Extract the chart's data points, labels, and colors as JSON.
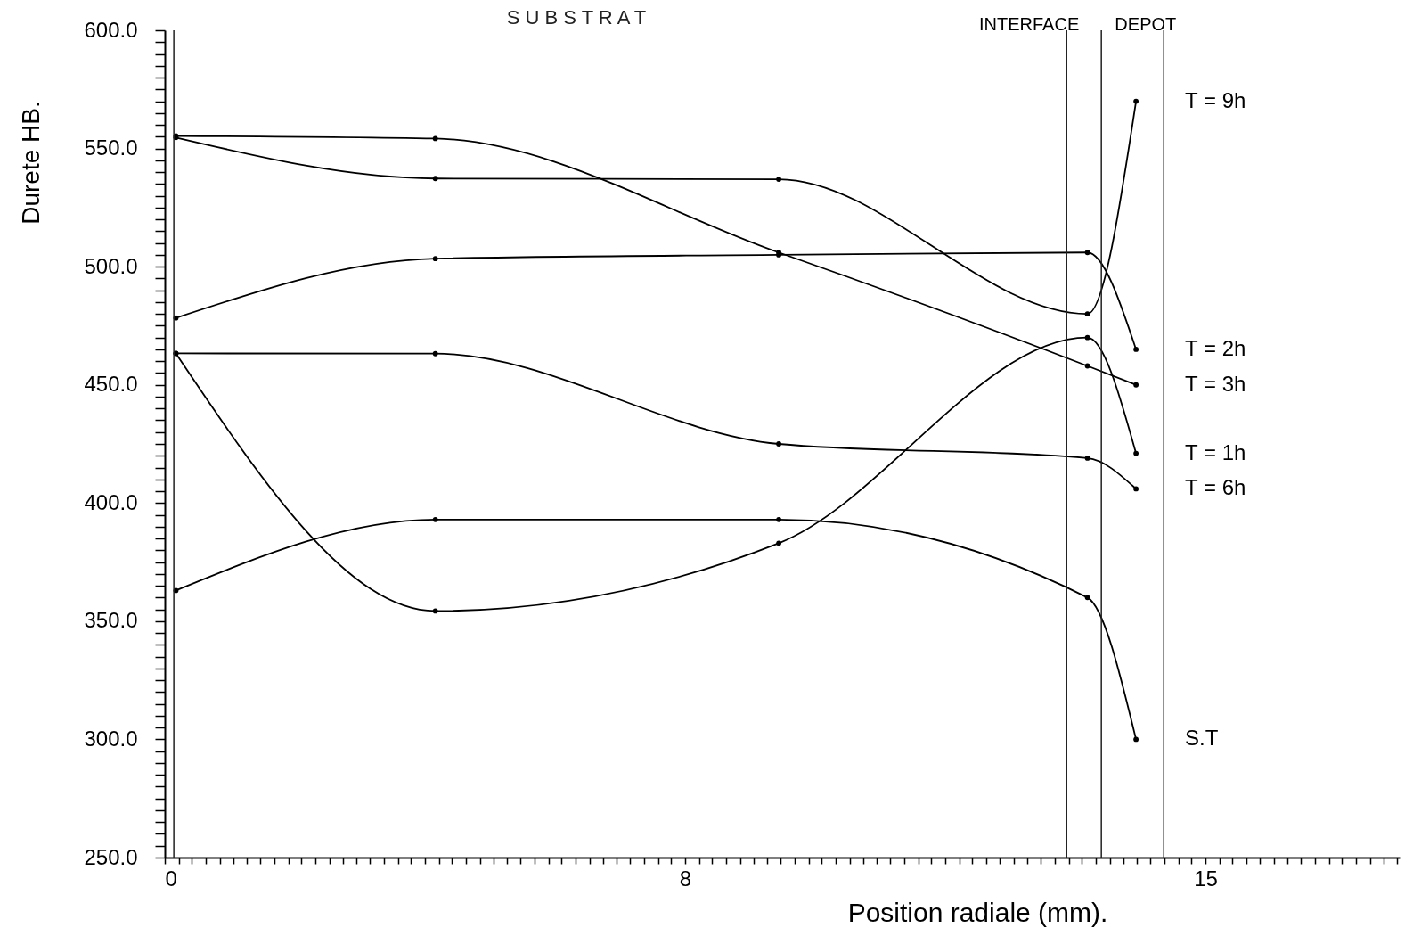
{
  "chart_data": {
    "type": "line",
    "xlabel": "Position radiale (mm).",
    "ylabel": "Durete HB.",
    "x": [
      0.16,
      3.9,
      8.85,
      13.3,
      14.0
    ],
    "series": [
      {
        "name": "T = 9h",
        "color": "#000000",
        "values": [
          554.6,
          537.3,
          537,
          480,
          570
        ]
      },
      {
        "name": "T = 2h",
        "color": "#000000",
        "values": [
          478.3,
          503.4,
          505,
          506,
          465
        ]
      },
      {
        "name": "T = 3h",
        "color": "#000000",
        "values": [
          555.3,
          554.2,
          506,
          458,
          450
        ]
      },
      {
        "name": "T = 1h",
        "color": "#000000",
        "values": [
          463.3,
          354.3,
          383,
          470,
          421
        ]
      },
      {
        "name": "T = 6h",
        "color": "#000000",
        "values": [
          463.3,
          463.2,
          425,
          419,
          406
        ]
      },
      {
        "name": "S.T",
        "color": "#000000",
        "values": [
          363,
          393,
          393,
          360,
          300
        ]
      }
    ],
    "xlim": [
      0,
      17.8
    ],
    "ylim": [
      250,
      600
    ],
    "xticks": [
      0,
      {
        "value": 0.2,
        "label": null
      },
      {
        "value": 0.39,
        "label": null
      },
      {
        "value": 0.59,
        "label": null
      },
      {
        "value": 0.79,
        "label": null
      },
      {
        "value": 0.99,
        "label": null
      },
      {
        "value": 1.18,
        "label": null
      },
      {
        "value": 1.38,
        "label": null
      },
      {
        "value": 1.58,
        "label": null
      },
      {
        "value": 1.78,
        "label": null
      },
      {
        "value": 1.97,
        "label": null
      },
      {
        "value": 2.17,
        "label": null
      },
      {
        "value": 2.37,
        "label": null
      },
      {
        "value": 2.57,
        "label": null
      },
      {
        "value": 2.76,
        "label": null
      },
      {
        "value": 2.96,
        "label": null
      },
      {
        "value": 3.16,
        "label": null
      },
      {
        "value": 3.36,
        "label": null
      },
      {
        "value": 3.55,
        "label": null
      },
      {
        "value": 3.75,
        "label": null
      },
      {
        "value": 3.95,
        "label": null
      },
      {
        "value": 4.14,
        "label": null
      },
      {
        "value": 4.34,
        "label": null
      },
      {
        "value": 4.54,
        "label": null
      },
      {
        "value": 4.74,
        "label": null
      },
      {
        "value": 4.93,
        "label": null
      },
      {
        "value": 5.13,
        "label": null
      },
      {
        "value": 5.33,
        "label": null
      },
      {
        "value": 5.53,
        "label": null
      },
      {
        "value": 5.72,
        "label": null
      },
      {
        "value": 5.92,
        "label": null
      },
      {
        "value": 6.12,
        "label": null
      },
      {
        "value": 6.32,
        "label": null
      },
      {
        "value": 6.51,
        "label": null
      },
      {
        "value": 6.71,
        "label": null
      },
      {
        "value": 6.91,
        "label": null
      },
      {
        "value": 7.11,
        "label": null
      },
      {
        "value": 7.3,
        "label": null
      },
      {
        "value": 7.5,
        "label": "8"
      },
      {
        "value": 7.7,
        "label": null
      },
      {
        "value": 7.89,
        "label": null
      },
      {
        "value": 8.09,
        "label": null
      },
      {
        "value": 8.29,
        "label": null
      },
      {
        "value": 8.49,
        "label": null
      },
      {
        "value": 8.68,
        "label": null
      },
      {
        "value": 8.88,
        "label": null
      },
      {
        "value": 9.08,
        "label": null
      },
      {
        "value": 9.28,
        "label": null
      },
      {
        "value": 9.47,
        "label": null
      },
      {
        "value": 9.67,
        "label": null
      },
      {
        "value": 9.87,
        "label": null
      },
      {
        "value": 10.07,
        "label": null
      },
      {
        "value": 10.26,
        "label": null
      },
      {
        "value": 10.46,
        "label": null
      },
      {
        "value": 10.66,
        "label": null
      },
      {
        "value": 10.86,
        "label": null
      },
      {
        "value": 11.05,
        "label": null
      },
      {
        "value": 11.25,
        "label": null
      },
      {
        "value": 11.45,
        "label": null
      },
      {
        "value": 11.64,
        "label": null
      },
      {
        "value": 11.84,
        "label": null
      },
      {
        "value": 12.04,
        "label": null
      },
      {
        "value": 12.24,
        "label": null
      },
      {
        "value": 12.43,
        "label": null
      },
      {
        "value": 12.63,
        "label": null
      },
      {
        "value": 12.83,
        "label": null
      },
      {
        "value": 13.03,
        "label": null
      },
      {
        "value": 13.22,
        "label": null
      },
      {
        "value": 13.42,
        "label": null
      },
      {
        "value": 13.62,
        "label": null
      },
      {
        "value": 13.82,
        "label": null
      },
      {
        "value": 14.01,
        "label": null
      },
      {
        "value": 14.21,
        "label": null
      },
      {
        "value": 14.41,
        "label": null
      },
      {
        "value": 14.61,
        "label": null
      },
      {
        "value": 14.8,
        "label": null
      },
      15,
      {
        "value": 15.2,
        "label": null
      },
      {
        "value": 15.39,
        "label": null
      },
      {
        "value": 15.59,
        "label": null
      },
      {
        "value": 15.79,
        "label": null
      },
      {
        "value": 15.99,
        "label": null
      },
      {
        "value": 16.18,
        "label": null
      },
      {
        "value": 16.38,
        "label": null
      },
      {
        "value": 16.58,
        "label": null
      },
      {
        "value": 16.78,
        "label": null
      },
      {
        "value": 16.97,
        "label": null
      },
      {
        "value": 17.17,
        "label": null
      },
      {
        "value": 17.37,
        "label": null
      },
      {
        "value": 17.57,
        "label": null
      },
      {
        "value": 17.76,
        "label": null
      }
    ],
    "yticks": [
      {
        "value": 250,
        "label": "250.0"
      },
      {
        "value": 255,
        "label": null
      },
      {
        "value": 260,
        "label": null
      },
      {
        "value": 265,
        "label": null
      },
      {
        "value": 270,
        "label": null
      },
      {
        "value": 275,
        "label": null
      },
      {
        "value": 280,
        "label": null
      },
      {
        "value": 285,
        "label": null
      },
      {
        "value": 290,
        "label": null
      },
      {
        "value": 295,
        "label": null
      },
      {
        "value": 300,
        "label": "300.0"
      },
      {
        "value": 305,
        "label": null
      },
      {
        "value": 310,
        "label": null
      },
      {
        "value": 315,
        "label": null
      },
      {
        "value": 320,
        "label": null
      },
      {
        "value": 325,
        "label": null
      },
      {
        "value": 330,
        "label": null
      },
      {
        "value": 335,
        "label": null
      },
      {
        "value": 340,
        "label": null
      },
      {
        "value": 345,
        "label": null
      },
      {
        "value": 350,
        "label": "350.0"
      },
      {
        "value": 355,
        "label": null
      },
      {
        "value": 360,
        "label": null
      },
      {
        "value": 365,
        "label": null
      },
      {
        "value": 370,
        "label": null
      },
      {
        "value": 375,
        "label": null
      },
      {
        "value": 380,
        "label": null
      },
      {
        "value": 385,
        "label": null
      },
      {
        "value": 390,
        "label": null
      },
      {
        "value": 395,
        "label": null
      },
      {
        "value": 400,
        "label": "400.0"
      },
      {
        "value": 405,
        "label": null
      },
      {
        "value": 410,
        "label": null
      },
      {
        "value": 415,
        "label": null
      },
      {
        "value": 420,
        "label": null
      },
      {
        "value": 425,
        "label": null
      },
      {
        "value": 430,
        "label": null
      },
      {
        "value": 435,
        "label": null
      },
      {
        "value": 440,
        "label": null
      },
      {
        "value": 445,
        "label": null
      },
      {
        "value": 450,
        "label": "450.0"
      },
      {
        "value": 455,
        "label": null
      },
      {
        "value": 460,
        "label": null
      },
      {
        "value": 465,
        "label": null
      },
      {
        "value": 470,
        "label": null
      },
      {
        "value": 475,
        "label": null
      },
      {
        "value": 480,
        "label": null
      },
      {
        "value": 485,
        "label": null
      },
      {
        "value": 490,
        "label": null
      },
      {
        "value": 495,
        "label": null
      },
      {
        "value": 500,
        "label": "500.0"
      },
      {
        "value": 505,
        "label": null
      },
      {
        "value": 510,
        "label": null
      },
      {
        "value": 515,
        "label": null
      },
      {
        "value": 520,
        "label": null
      },
      {
        "value": 525,
        "label": null
      },
      {
        "value": 530,
        "label": null
      },
      {
        "value": 535,
        "label": null
      },
      {
        "value": 540,
        "label": null
      },
      {
        "value": 545,
        "label": null
      },
      {
        "value": 550,
        "label": "550.0"
      },
      {
        "value": 555,
        "label": null
      },
      {
        "value": 560,
        "label": null
      },
      {
        "value": 565,
        "label": null
      },
      {
        "value": 570,
        "label": null
      },
      {
        "value": 575,
        "label": null
      },
      {
        "value": 580,
        "label": null
      },
      {
        "value": 585,
        "label": null
      },
      {
        "value": 590,
        "label": null
      },
      {
        "value": 595,
        "label": null
      },
      {
        "value": 600,
        "label": "600.0"
      }
    ],
    "ref_lines": [
      {
        "axis": "x",
        "value": 0.13
      },
      {
        "axis": "x",
        "value": 13.0,
        "label": "INTERFACE"
      },
      {
        "axis": "x",
        "value": 13.5
      },
      {
        "axis": "x",
        "value": 14.4,
        "label": "DEPOT"
      }
    ],
    "annotations": [
      "S U B S T R A T"
    ],
    "grid": false,
    "legend": false,
    "marker": "circle",
    "line_style": "solid"
  }
}
